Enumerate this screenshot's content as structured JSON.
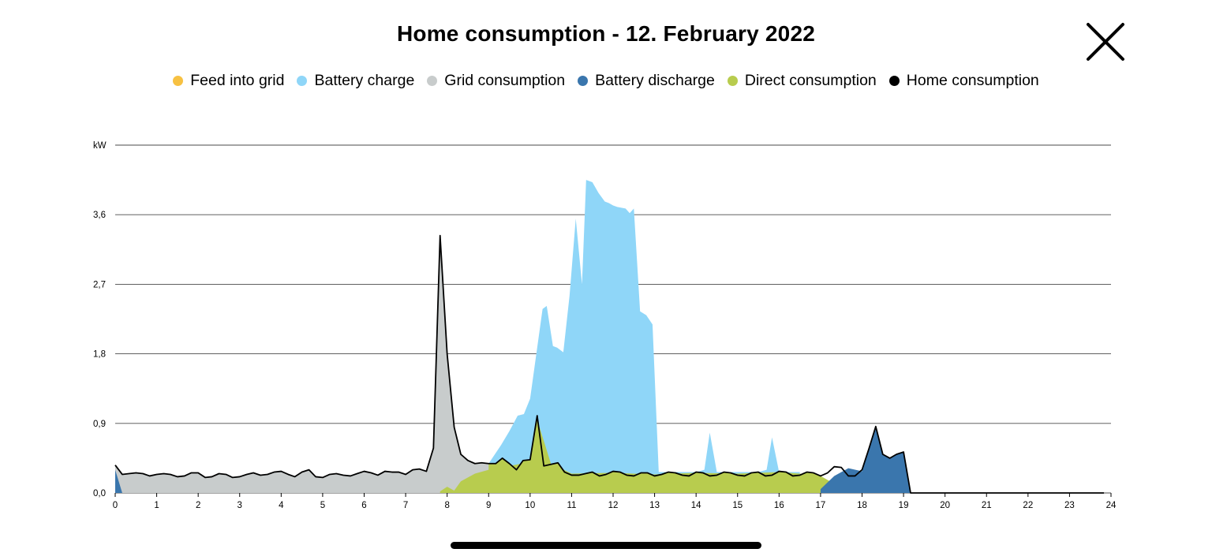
{
  "header": {
    "title": "Home consumption - 12. February 2022"
  },
  "icons": {
    "close": "close-icon"
  },
  "colors": {
    "feed": "#F7C142",
    "battery_charge": "#8FD6F8",
    "grid": "#C8CCCC",
    "battery_discharge": "#3A76AD",
    "direct": "#B8CC4E",
    "home": "#000000"
  },
  "chart_data": {
    "type": "area",
    "title": "Home consumption - 12. February 2022",
    "ylabel": "kW",
    "xlabel": "",
    "xlim": [
      0,
      24
    ],
    "ylim": [
      0,
      4.5
    ],
    "grid": true,
    "legend_position": "top",
    "x_ticks": [
      "0",
      "1",
      "2",
      "3",
      "4",
      "5",
      "6",
      "7",
      "8",
      "9",
      "10",
      "11",
      "12",
      "13",
      "14",
      "15",
      "16",
      "17",
      "18",
      "19",
      "20",
      "21",
      "22",
      "23",
      "24"
    ],
    "y_ticks": [
      "0,0",
      "0,9",
      "1,8",
      "2,7",
      "3,6"
    ],
    "y_tick_values": [
      0,
      0.9,
      1.8,
      2.7,
      3.6
    ],
    "legend": [
      {
        "name": "Feed into grid",
        "color": "#F7C142"
      },
      {
        "name": "Battery charge",
        "color": "#8FD6F8"
      },
      {
        "name": "Grid consumption",
        "color": "#C8CCCC"
      },
      {
        "name": "Battery discharge",
        "color": "#3A76AD"
      },
      {
        "name": "Direct consumption",
        "color": "#B8CC4E"
      },
      {
        "name": "Home consumption",
        "color": "#000000"
      }
    ],
    "series": [
      {
        "name": "Home consumption",
        "x": [
          0,
          0.17,
          0.33,
          0.5,
          0.67,
          0.83,
          1,
          1.17,
          1.33,
          1.5,
          1.67,
          1.83,
          2,
          2.17,
          2.33,
          2.5,
          2.67,
          2.83,
          3,
          3.17,
          3.33,
          3.5,
          3.67,
          3.83,
          4,
          4.17,
          4.33,
          4.5,
          4.67,
          4.83,
          5,
          5.17,
          5.33,
          5.5,
          5.67,
          5.83,
          6,
          6.17,
          6.33,
          6.5,
          6.67,
          6.83,
          7,
          7.17,
          7.33,
          7.5,
          7.67,
          7.83,
          8,
          8.17,
          8.33,
          8.5,
          8.67,
          8.83,
          9,
          9.17,
          9.33,
          9.5,
          9.67,
          9.83,
          10,
          10.17,
          10.33,
          10.5,
          10.67,
          10.83,
          11,
          11.17,
          11.33,
          11.5,
          11.67,
          11.83,
          12,
          12.17,
          12.33,
          12.5,
          12.67,
          12.83,
          13,
          13.17,
          13.33,
          13.5,
          13.67,
          13.83,
          14,
          14.17,
          14.33,
          14.5,
          14.67,
          14.83,
          15,
          15.17,
          15.33,
          15.5,
          15.67,
          15.83,
          16,
          16.17,
          16.33,
          16.5,
          16.67,
          16.83,
          17,
          17.17,
          17.33,
          17.5,
          17.67,
          17.83,
          18,
          18.17,
          18.33,
          18.5,
          18.67,
          18.83,
          19,
          19.17,
          19.33,
          20,
          21,
          22,
          23,
          23.83
        ],
        "values": [
          0.36,
          0.24,
          0.25,
          0.26,
          0.25,
          0.22,
          0.24,
          0.25,
          0.24,
          0.21,
          0.22,
          0.26,
          0.26,
          0.2,
          0.21,
          0.25,
          0.24,
          0.2,
          0.21,
          0.24,
          0.26,
          0.23,
          0.24,
          0.27,
          0.28,
          0.24,
          0.21,
          0.27,
          0.3,
          0.21,
          0.2,
          0.24,
          0.25,
          0.23,
          0.22,
          0.25,
          0.28,
          0.26,
          0.23,
          0.28,
          0.27,
          0.27,
          0.24,
          0.3,
          0.31,
          0.28,
          0.58,
          3.33,
          1.8,
          0.85,
          0.5,
          0.42,
          0.38,
          0.39,
          0.38,
          0.38,
          0.45,
          0.38,
          0.3,
          0.42,
          0.43,
          1.0,
          0.35,
          0.37,
          0.39,
          0.27,
          0.23,
          0.23,
          0.25,
          0.27,
          0.22,
          0.24,
          0.28,
          0.27,
          0.23,
          0.22,
          0.26,
          0.26,
          0.22,
          0.24,
          0.27,
          0.26,
          0.23,
          0.22,
          0.27,
          0.26,
          0.22,
          0.23,
          0.27,
          0.26,
          0.23,
          0.22,
          0.26,
          0.27,
          0.22,
          0.23,
          0.28,
          0.27,
          0.22,
          0.23,
          0.27,
          0.26,
          0.22,
          0.26,
          0.34,
          0.33,
          0.22,
          0.22,
          0.3,
          0.58,
          0.86,
          0.5,
          0.45,
          0.5,
          0.53,
          0.0,
          0.0,
          0.0,
          0.0,
          0.0,
          0.0,
          0.0
        ]
      },
      {
        "name": "Battery charge",
        "x": [
          9.0,
          9.3,
          9.5,
          9.7,
          9.85,
          10.0,
          10.3,
          10.4,
          10.55,
          10.65,
          10.8,
          10.95,
          11.1,
          11.25,
          11.35,
          11.5,
          11.65,
          11.8,
          11.9,
          12.0,
          12.1,
          12.3,
          12.4,
          12.5,
          12.65,
          12.8,
          12.95,
          13.05,
          13.1,
          13.2,
          13.5,
          14.0,
          14.2,
          14.33,
          14.5,
          15.5,
          15.7,
          15.83,
          16.0,
          16.5
        ],
        "values": [
          0.38,
          0.62,
          0.8,
          1.0,
          1.02,
          1.22,
          2.38,
          2.42,
          1.9,
          1.88,
          1.82,
          2.55,
          3.55,
          2.7,
          4.05,
          4.02,
          3.88,
          3.77,
          3.75,
          3.72,
          3.7,
          3.68,
          3.62,
          3.68,
          2.35,
          2.3,
          2.18,
          0.9,
          0.27,
          0.27,
          0.27,
          0.27,
          0.3,
          0.78,
          0.27,
          0.27,
          0.3,
          0.72,
          0.27,
          0.27
        ]
      },
      {
        "name": "Direct consumption",
        "x": [
          7.83,
          8.0,
          8.17,
          8.33,
          8.5,
          8.67,
          9.0,
          9.5,
          10.0,
          10.17,
          10.5,
          11.0,
          12.0,
          13.0,
          14.0,
          15.0,
          16.0,
          16.5,
          17.0,
          17.33,
          17.67,
          18.0
        ],
        "values": [
          0.02,
          0.08,
          0.03,
          0.15,
          0.2,
          0.25,
          0.3,
          0.35,
          0.4,
          0.95,
          0.38,
          0.25,
          0.26,
          0.24,
          0.26,
          0.25,
          0.27,
          0.25,
          0.22,
          0.12,
          0.03,
          0.0
        ]
      },
      {
        "name": "Battery discharge",
        "x": [
          0,
          0.17,
          17.0,
          17.33,
          17.67,
          18.0,
          18.17,
          18.33,
          18.5,
          18.67,
          18.83,
          19.0,
          19.17
        ],
        "values": [
          0.3,
          0.0,
          0.05,
          0.22,
          0.32,
          0.28,
          0.58,
          0.86,
          0.5,
          0.45,
          0.5,
          0.53,
          0.0
        ]
      },
      {
        "name": "Grid consumption",
        "x": [
          0,
          7.83,
          8.0,
          8.17,
          8.5,
          9.0
        ],
        "values": [
          0.34,
          3.33,
          1.8,
          0.85,
          0.42,
          0.38
        ]
      },
      {
        "name": "Feed into grid",
        "x": [],
        "values": []
      }
    ]
  }
}
